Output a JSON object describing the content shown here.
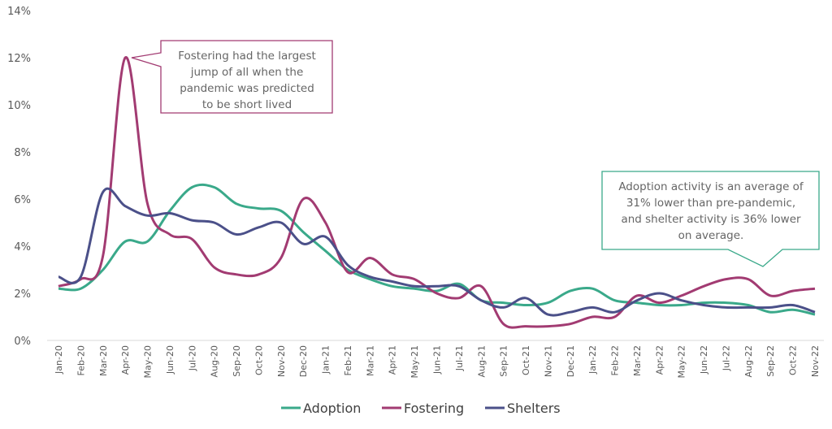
{
  "chart_data": {
    "type": "line",
    "title": "",
    "xlabel": "",
    "ylabel": "",
    "ylim": [
      0,
      14
    ],
    "yticks": [
      "0%",
      "2%",
      "4%",
      "6%",
      "8%",
      "10%",
      "12%",
      "14%"
    ],
    "categories": [
      "Jan-20",
      "Feb-20",
      "Mar-20",
      "Apr-20",
      "May-20",
      "Jun-20",
      "Jul-20",
      "Aug-20",
      "Sep-20",
      "Oct-20",
      "Nov-20",
      "Dec-20",
      "Jan-21",
      "Feb-21",
      "Mar-21",
      "Apr-21",
      "May-21",
      "Jun-21",
      "Jul-21",
      "Aug-21",
      "Sep-21",
      "Oct-21",
      "Nov-21",
      "Dec-21",
      "Jan-22",
      "Feb-22",
      "Mar-22",
      "Apr-22",
      "May-22",
      "Jun-22",
      "Jul-22",
      "Aug-22",
      "Sep-22",
      "Oct-22",
      "Nov-22"
    ],
    "series": [
      {
        "name": "Adoption",
        "color": "#3aa98a",
        "values": [
          2.2,
          2.2,
          3.0,
          4.2,
          4.2,
          5.5,
          6.5,
          6.5,
          5.8,
          5.6,
          5.5,
          4.6,
          3.8,
          3.0,
          2.6,
          2.3,
          2.2,
          2.1,
          2.4,
          1.7,
          1.6,
          1.5,
          1.6,
          2.1,
          2.2,
          1.7,
          1.6,
          1.5,
          1.5,
          1.6,
          1.6,
          1.5,
          1.2,
          1.3,
          1.1
        ]
      },
      {
        "name": "Fostering",
        "color": "#a23b72",
        "values": [
          2.3,
          2.6,
          3.6,
          12.0,
          5.8,
          4.5,
          4.3,
          3.1,
          2.8,
          2.8,
          3.5,
          6.0,
          5.0,
          2.9,
          3.5,
          2.8,
          2.6,
          2.0,
          1.8,
          2.3,
          0.7,
          0.6,
          0.6,
          0.7,
          1.0,
          1.0,
          1.9,
          1.6,
          1.9,
          2.3,
          2.6,
          2.6,
          1.9,
          2.1,
          2.2
        ]
      },
      {
        "name": "Shelters",
        "color": "#4b5089",
        "values": [
          2.7,
          2.7,
          6.3,
          5.7,
          5.3,
          5.4,
          5.1,
          5.0,
          4.5,
          4.8,
          5.0,
          4.1,
          4.4,
          3.2,
          2.7,
          2.5,
          2.3,
          2.3,
          2.3,
          1.7,
          1.4,
          1.8,
          1.1,
          1.2,
          1.4,
          1.2,
          1.7,
          2.0,
          1.7,
          1.5,
          1.4,
          1.4,
          1.4,
          1.5,
          1.2
        ]
      }
    ],
    "annotations": [
      {
        "lines": [
          "Fostering had the largest",
          "jump of all when the",
          "pandemic was predicted",
          "to be short lived"
        ],
        "color": "#a23b72"
      },
      {
        "lines": [
          "Adoption activity is an average of",
          "31% lower than pre-pandemic,",
          "and shelter activity is 36% lower",
          "on average."
        ],
        "color": "#3aa98a"
      }
    ],
    "legend_position": "bottom",
    "grid": false
  }
}
